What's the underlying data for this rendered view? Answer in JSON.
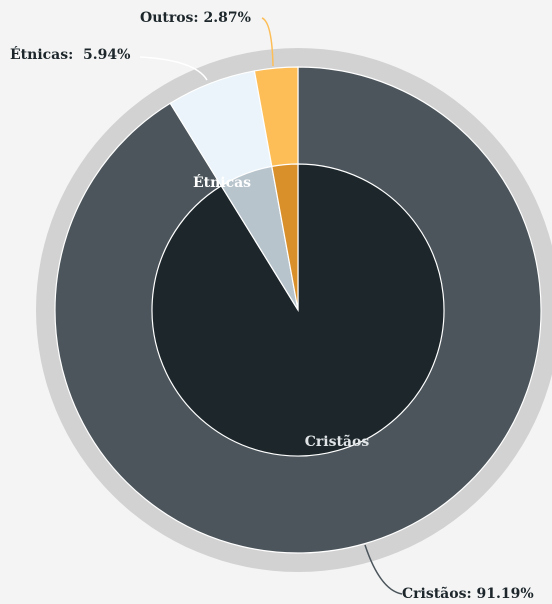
{
  "chart_data": {
    "type": "pie",
    "categories": [
      "Cristãos",
      "Étnicas",
      "Outros"
    ],
    "values": [
      91.19,
      5.94,
      2.87
    ],
    "value_labels": [
      "Cristãos: 91.19%",
      "Étnicas:  5.94%",
      "Outros: 2.87%"
    ],
    "inner_labels": [
      "Cristãos",
      "Étnicas",
      null
    ],
    "colors": [
      "#4b555b",
      "#eaf4fa",
      "#fdbe57"
    ],
    "inner_colors": [
      "#1c262b",
      "#b8c4cc",
      "#d9902a"
    ]
  }
}
